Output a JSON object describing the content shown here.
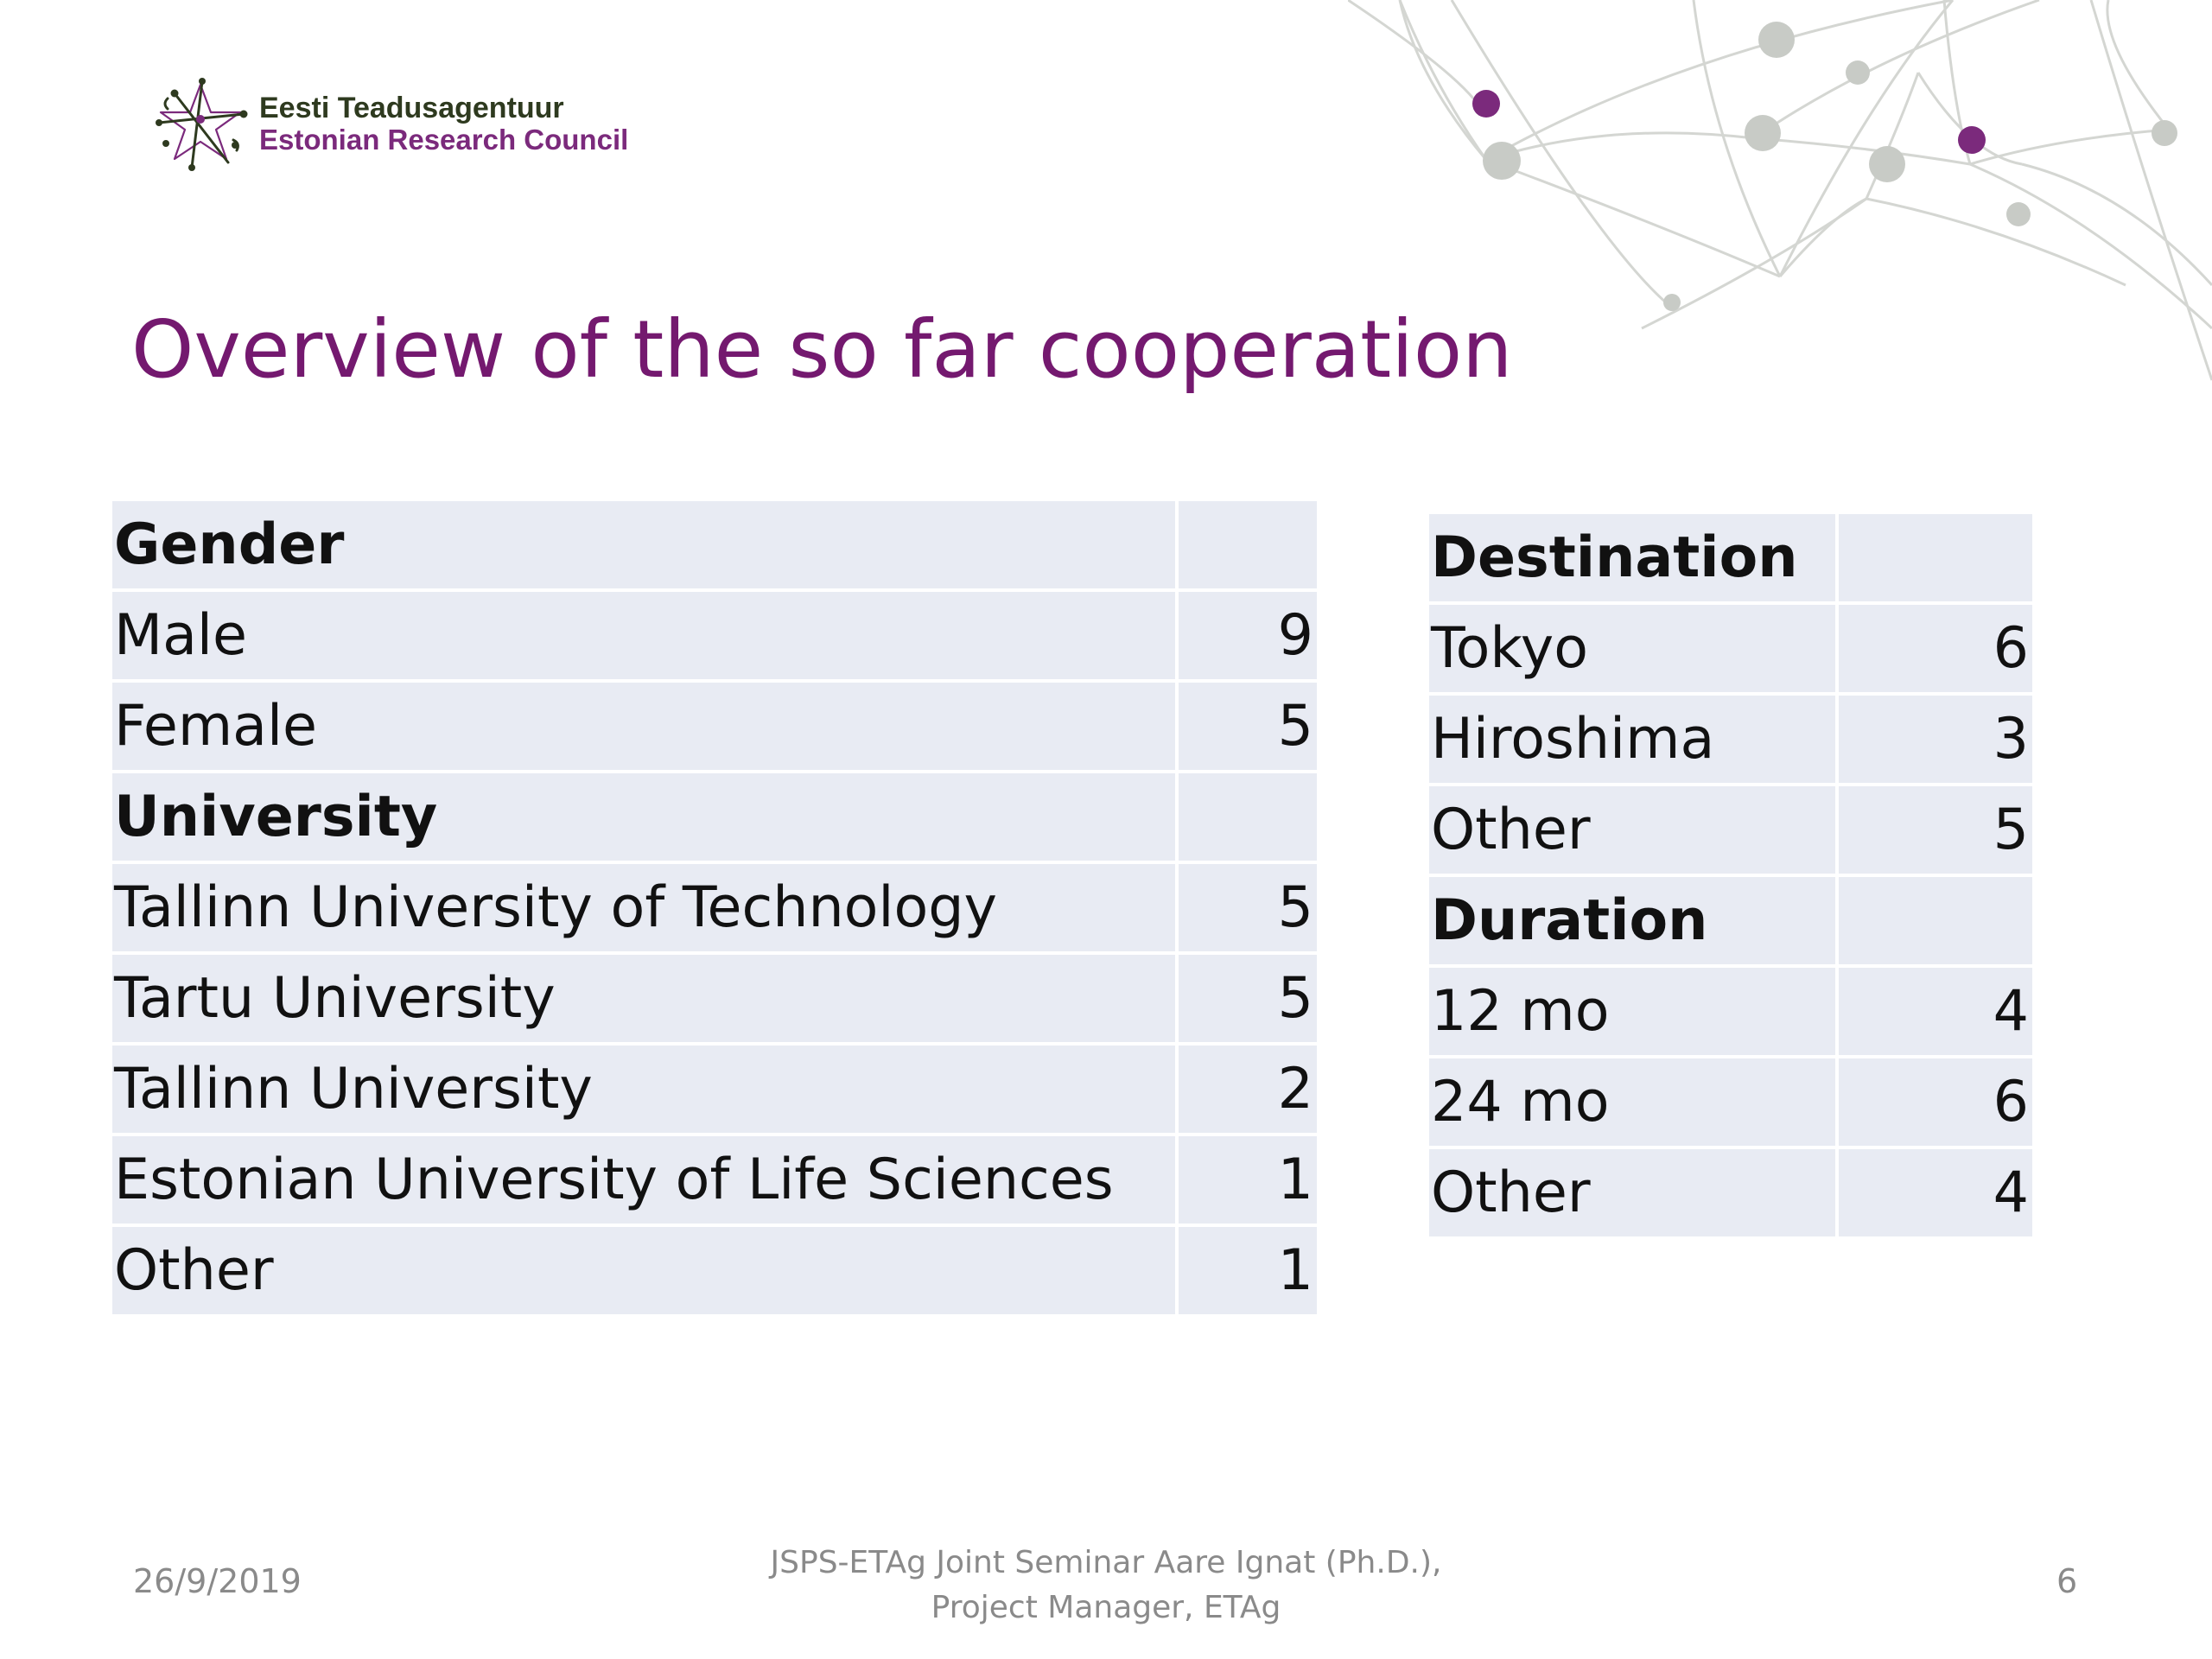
{
  "logo": {
    "line1": "Eesti Teadusagentuur",
    "line2": "Estonian Research Council"
  },
  "title": "Overview of the so far cooperation",
  "colors": {
    "title": "#74196f",
    "table_cell": "#e8ebf3",
    "network_gray": "#c8cbc6",
    "network_purple": "#7b2a7c",
    "footer_text": "#8a8a8a"
  },
  "left_table": {
    "rows": [
      {
        "label": "Gender",
        "value": "",
        "header": true
      },
      {
        "label": "Male",
        "value": "9",
        "header": false
      },
      {
        "label": "Female",
        "value": "5",
        "header": false
      },
      {
        "label": "University",
        "value": "",
        "header": true
      },
      {
        "label": "Tallinn University of Technology",
        "value": "5",
        "header": false
      },
      {
        "label": "Tartu University",
        "value": "5",
        "header": false
      },
      {
        "label": "Tallinn University",
        "value": "2",
        "header": false
      },
      {
        "label": "Estonian University of Life Sciences",
        "value": "1",
        "header": false
      },
      {
        "label": "Other",
        "value": "1",
        "header": false
      }
    ]
  },
  "right_table": {
    "rows": [
      {
        "label": "Destination",
        "value": "",
        "header": true
      },
      {
        "label": "Tokyo",
        "value": "6",
        "header": false
      },
      {
        "label": "Hiroshima",
        "value": "3",
        "header": false
      },
      {
        "label": "Other",
        "value": "5",
        "header": false
      },
      {
        "label": "Duration",
        "value": "",
        "header": true
      },
      {
        "label": "12 mo",
        "value": "4",
        "header": false
      },
      {
        "label": "24 mo",
        "value": "6",
        "header": false
      },
      {
        "label": "Other",
        "value": "4",
        "header": false
      }
    ]
  },
  "footer": {
    "date": "26/9/2019",
    "center_line1": "JSPS-ETAg Joint Seminar Aare Ignat (Ph.D.),",
    "center_line2": "Project Manager, ETAg",
    "page_number": "6"
  }
}
